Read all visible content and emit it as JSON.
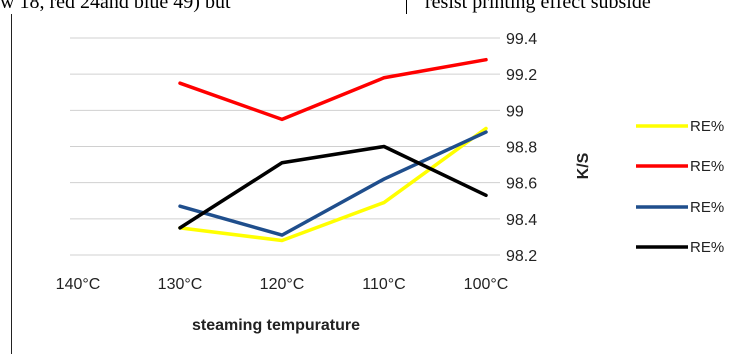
{
  "page": {
    "top_text_left": "w 18, red 24and blue 49) but",
    "top_text_right": "resist printing effect subside"
  },
  "chart_data": {
    "type": "line",
    "title": "",
    "xlabel": "steaming tempurature",
    "ylabel": "K/S",
    "categories": [
      "140°C",
      "130°C",
      "120°C",
      "110°C",
      "100°C"
    ],
    "ylim": [
      98.2,
      99.4
    ],
    "yticks": [
      "98.2",
      "98.4",
      "98.6",
      "98.8",
      "99",
      "99.2",
      "99.4"
    ],
    "grid": true,
    "legend_position": "right",
    "series": [
      {
        "name": "RE%",
        "color": "#ffff00",
        "values": [
          null,
          98.35,
          98.28,
          98.49,
          98.9
        ]
      },
      {
        "name": "RE%",
        "color": "#ff0000",
        "values": [
          null,
          99.15,
          98.95,
          99.18,
          99.28
        ]
      },
      {
        "name": "RE%",
        "color": "#1f4e8c",
        "values": [
          null,
          98.47,
          98.31,
          98.62,
          98.88
        ]
      },
      {
        "name": "RE%",
        "color": "#000000",
        "values": [
          null,
          98.35,
          98.71,
          98.8,
          98.53
        ]
      }
    ]
  }
}
